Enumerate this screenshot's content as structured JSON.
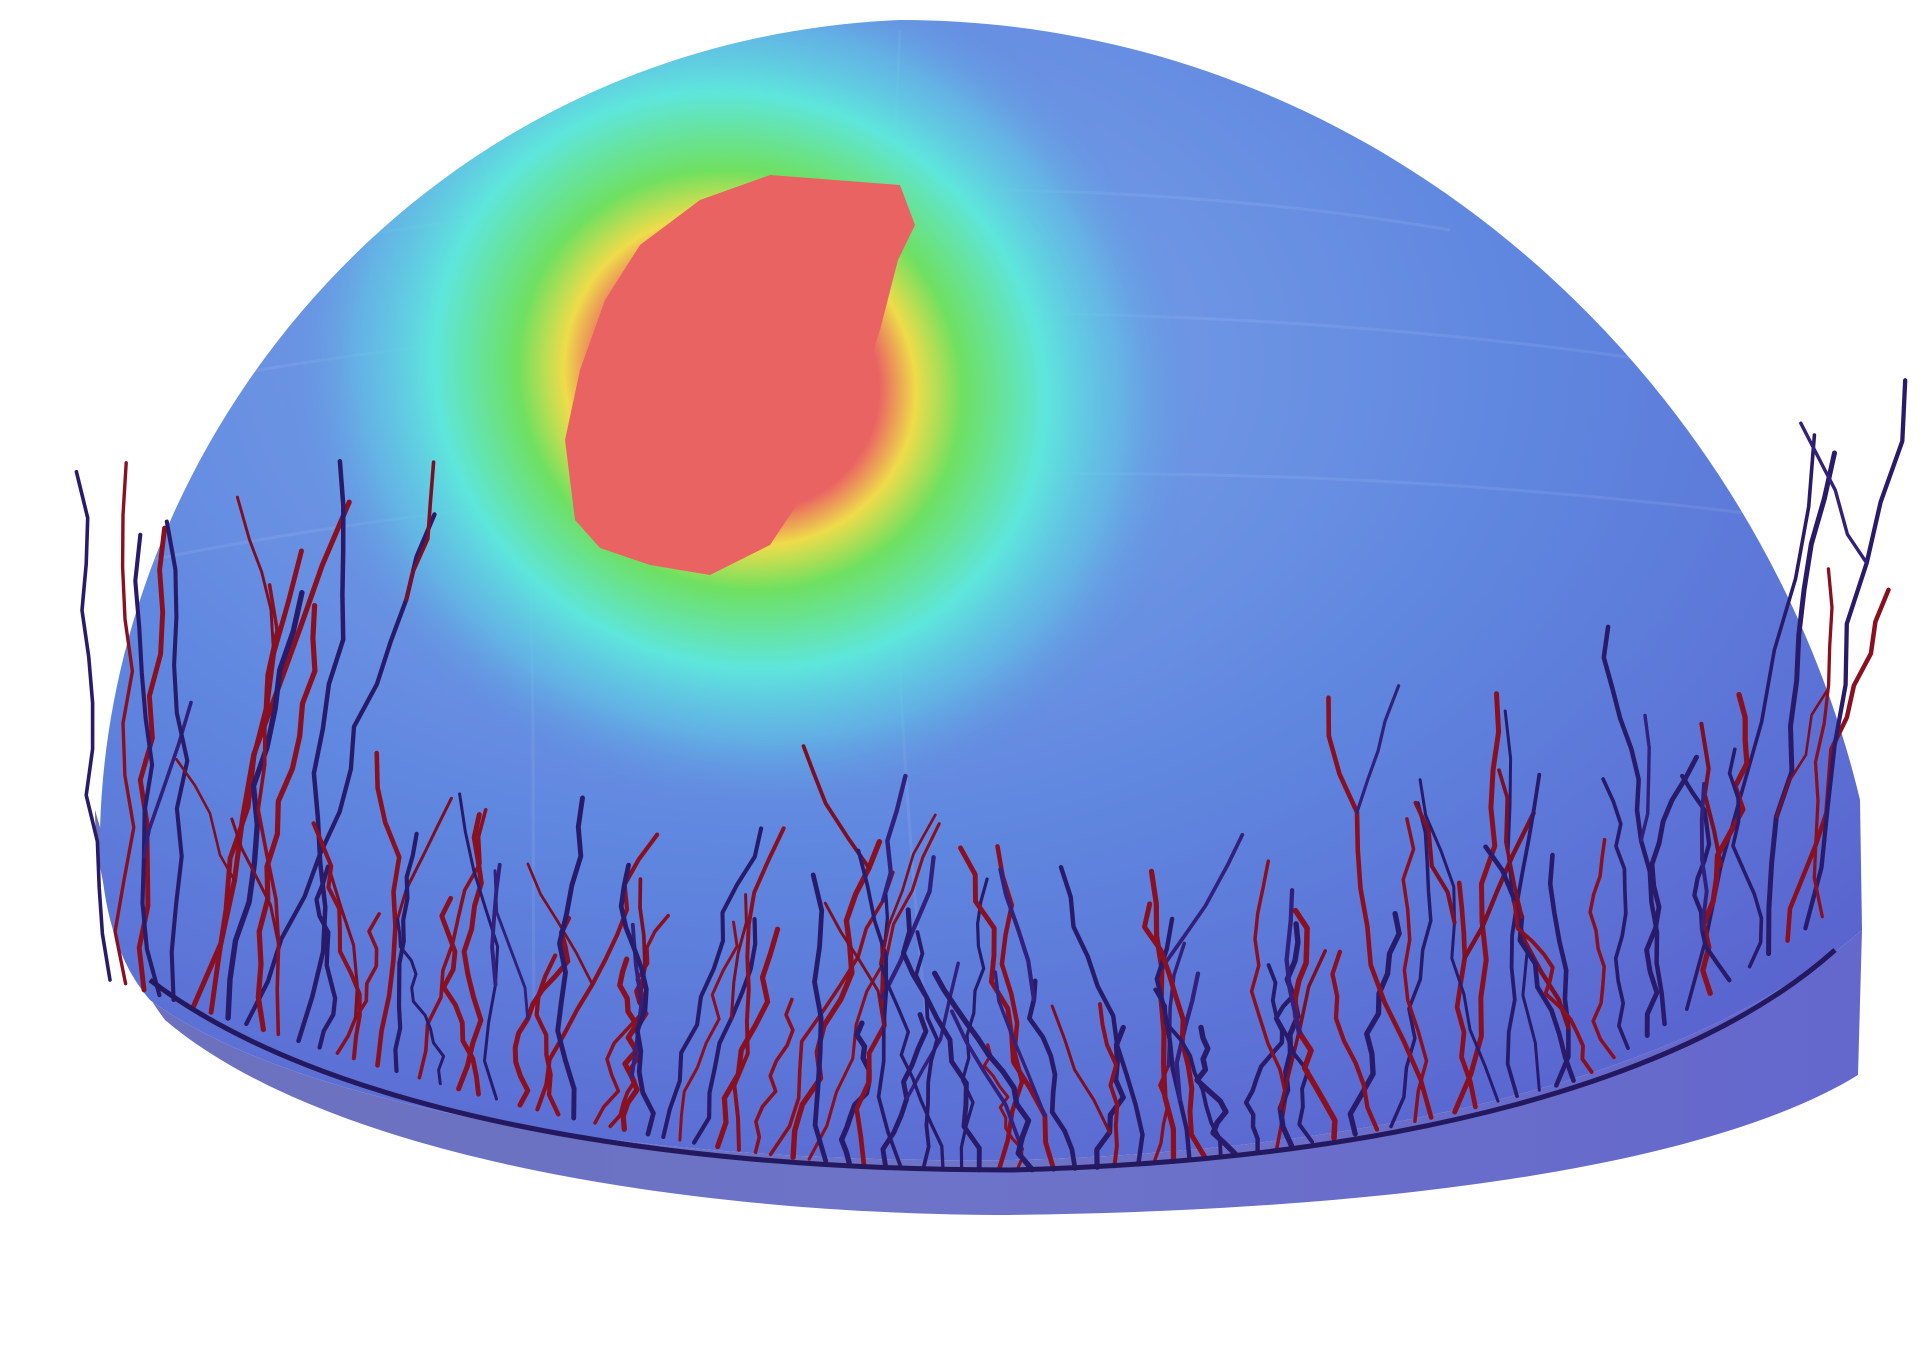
{
  "figure": {
    "description_colors": {
      "background": "#ffffff",
      "dome_base": "#5f78d8",
      "band": "#6a74c6",
      "hotspot_core": "#e96464",
      "hotspot_ring_yellow": "#e9ea4a",
      "hotspot_ring_green": "#57e06a",
      "hotspot_ring_cyan": "#5fe3e1",
      "vessel_dark": "#2a1b6a",
      "vessel_red": "#8a1020"
    },
    "icons": [
      "dome-surface",
      "heat-spot",
      "vessel-network"
    ]
  }
}
